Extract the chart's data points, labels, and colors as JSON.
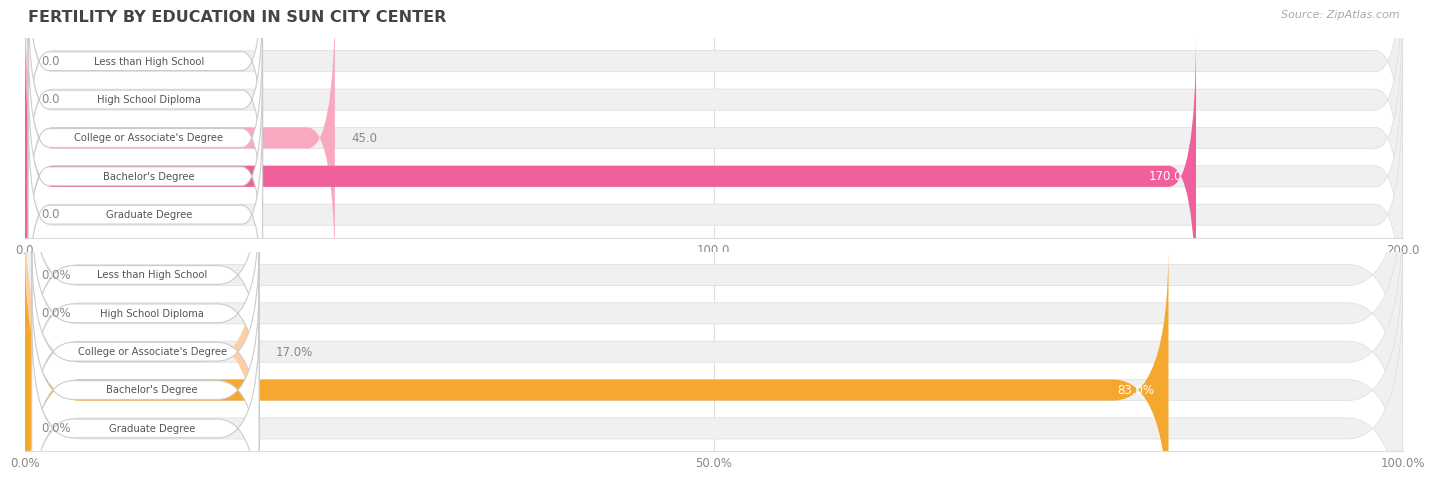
{
  "title": "FERTILITY BY EDUCATION IN SUN CITY CENTER",
  "source": "Source: ZipAtlas.com",
  "top_chart": {
    "categories": [
      "Less than High School",
      "High School Diploma",
      "College or Associate's Degree",
      "Bachelor's Degree",
      "Graduate Degree"
    ],
    "values": [
      0.0,
      0.0,
      45.0,
      170.0,
      0.0
    ],
    "xlim": [
      0,
      200
    ],
    "xticks": [
      0.0,
      100.0,
      200.0
    ],
    "xtick_labels": [
      "0.0",
      "100.0",
      "200.0"
    ],
    "bar_color_normal": "#F9A8C0",
    "bar_color_highlight": "#F0609A",
    "bar_bg_color": "#f0f0f0"
  },
  "bottom_chart": {
    "categories": [
      "Less than High School",
      "High School Diploma",
      "College or Associate's Degree",
      "Bachelor's Degree",
      "Graduate Degree"
    ],
    "values": [
      0.0,
      0.0,
      17.0,
      83.0,
      0.0
    ],
    "xlim": [
      0,
      100
    ],
    "xticks": [
      0.0,
      50.0,
      100.0
    ],
    "xtick_labels": [
      "0.0%",
      "50.0%",
      "100.0%"
    ],
    "bar_color_normal": "#FECFA0",
    "bar_color_highlight": "#F5A830",
    "bar_bg_color": "#f0f0f0"
  },
  "label_box_facecolor": "#ffffff",
  "label_box_edgecolor": "#cccccc",
  "label_text_color": "#555555",
  "value_text_color_outside": "#888888",
  "value_text_color_inside": "#ffffff",
  "title_color": "#444444",
  "source_color": "#aaaaaa",
  "bg_color": "#ffffff",
  "grid_color": "#dddddd"
}
